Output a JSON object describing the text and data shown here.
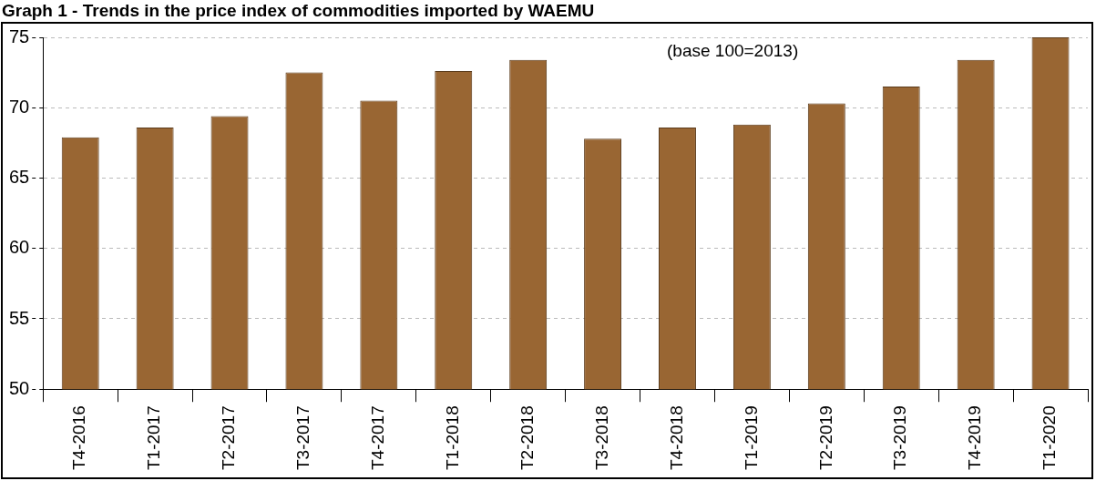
{
  "chart_data": {
    "type": "bar",
    "title": "Graph 1 - Trends in the price index of commodities imported by WAEMU",
    "annotations": [
      "(base 100=2013)"
    ],
    "categories": [
      "T4-2016",
      "T1-2017",
      "T2-2017",
      "T3-2017",
      "T4-2017",
      "T1-2018",
      "T2-2018",
      "T3-2018",
      "T4-2018",
      "T1-2019",
      "T2-2019",
      "T3-2019",
      "T4-2019",
      "T1-2020"
    ],
    "values": [
      67.9,
      68.6,
      69.4,
      72.5,
      70.5,
      72.6,
      73.4,
      67.8,
      68.6,
      68.8,
      70.3,
      71.5,
      73.4,
      75.0
    ],
    "color": "#996633",
    "ylim": [
      50,
      75
    ],
    "yticks": [
      50,
      55,
      60,
      65,
      70,
      75
    ],
    "grid": "y",
    "legend": false
  }
}
